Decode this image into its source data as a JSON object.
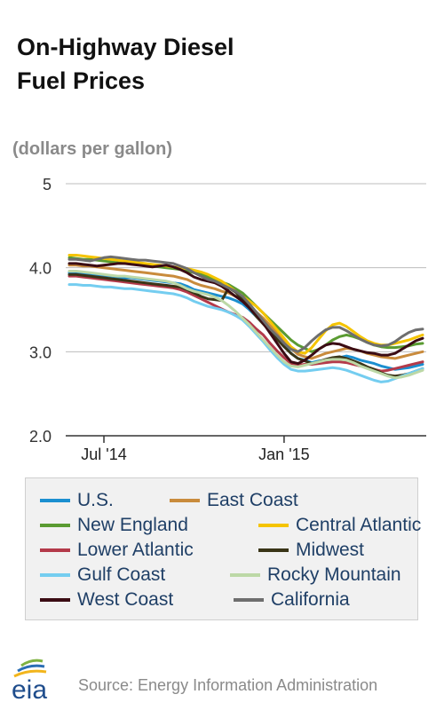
{
  "title_line1": "On-Highway Diesel",
  "title_line2": "Fuel Prices",
  "unit_label": "(dollars per gallon)",
  "logo_text": "eia",
  "source": "Source: Energy Information Administration",
  "chart_data": {
    "type": "line",
    "title": "On-Highway Diesel Fuel Prices",
    "ylabel": "(dollars per gallon)",
    "ylim": [
      2.0,
      5.0
    ],
    "y_ticks": [
      "2.0",
      "3.0",
      "4.0",
      "5"
    ],
    "y_tick_values": [
      2.0,
      3.0,
      4.0,
      5.0
    ],
    "x_ticks": [
      "Jul '14",
      "Jan '15"
    ],
    "x_tick_index": [
      5,
      31
    ],
    "grid": true,
    "legend_position": "bottom",
    "weeks": 52,
    "series": [
      {
        "name": "U.S.",
        "color": "#1b8fd0",
        "values": [
          3.94,
          3.94,
          3.93,
          3.92,
          3.91,
          3.91,
          3.9,
          3.89,
          3.88,
          3.88,
          3.87,
          3.86,
          3.85,
          3.84,
          3.83,
          3.82,
          3.81,
          3.78,
          3.74,
          3.72,
          3.7,
          3.68,
          3.66,
          3.64,
          3.61,
          3.57,
          3.5,
          3.42,
          3.36,
          3.26,
          3.17,
          3.08,
          2.98,
          2.92,
          2.9,
          2.87,
          2.89,
          2.9,
          2.92,
          2.93,
          2.95,
          2.93,
          2.9,
          2.88,
          2.86,
          2.83,
          2.81,
          2.79,
          2.8,
          2.81,
          2.83,
          2.85
        ]
      },
      {
        "name": "East Coast",
        "color": "#c98b3c",
        "values": [
          4.03,
          4.03,
          4.02,
          4.02,
          4.01,
          4.0,
          3.99,
          3.98,
          3.97,
          3.96,
          3.95,
          3.94,
          3.93,
          3.92,
          3.91,
          3.9,
          3.88,
          3.86,
          3.82,
          3.79,
          3.77,
          3.75,
          3.72,
          3.7,
          3.66,
          3.62,
          3.55,
          3.47,
          3.4,
          3.31,
          3.22,
          3.13,
          3.04,
          2.97,
          2.94,
          2.92,
          2.95,
          2.98,
          3.0,
          3.02,
          3.04,
          3.03,
          3.01,
          2.98,
          2.96,
          2.94,
          2.93,
          2.92,
          2.94,
          2.96,
          2.98,
          3.0
        ]
      },
      {
        "name": "New England",
        "color": "#5a9b32",
        "values": [
          4.12,
          4.11,
          4.1,
          4.1,
          4.09,
          4.08,
          4.07,
          4.06,
          4.05,
          4.05,
          4.04,
          4.03,
          4.02,
          4.01,
          4.0,
          3.99,
          3.98,
          3.96,
          3.94,
          3.92,
          3.89,
          3.86,
          3.83,
          3.8,
          3.75,
          3.7,
          3.62,
          3.54,
          3.46,
          3.38,
          3.3,
          3.22,
          3.14,
          3.08,
          3.04,
          3.0,
          3.03,
          3.08,
          3.14,
          3.18,
          3.2,
          3.18,
          3.15,
          3.11,
          3.08,
          3.06,
          3.05,
          3.05,
          3.06,
          3.07,
          3.09,
          3.1
        ]
      },
      {
        "name": "Central Atlantic",
        "color": "#f5c400",
        "values": [
          4.15,
          4.15,
          4.14,
          4.13,
          4.12,
          4.11,
          4.1,
          4.09,
          4.08,
          4.07,
          4.06,
          4.05,
          4.04,
          4.03,
          4.02,
          4.01,
          4.0,
          3.99,
          3.97,
          3.95,
          3.92,
          3.88,
          3.84,
          3.78,
          3.72,
          3.66,
          3.6,
          3.54,
          3.46,
          3.36,
          3.26,
          3.16,
          3.06,
          3.0,
          2.98,
          3.05,
          3.15,
          3.25,
          3.32,
          3.34,
          3.3,
          3.24,
          3.18,
          3.13,
          3.1,
          3.08,
          3.08,
          3.1,
          3.12,
          3.14,
          3.17,
          3.2
        ]
      },
      {
        "name": "Lower Atlantic",
        "color": "#b43a4a",
        "values": [
          3.9,
          3.9,
          3.89,
          3.88,
          3.87,
          3.86,
          3.85,
          3.84,
          3.83,
          3.82,
          3.81,
          3.8,
          3.79,
          3.78,
          3.77,
          3.76,
          3.74,
          3.71,
          3.67,
          3.63,
          3.59,
          3.55,
          3.51,
          3.47,
          3.44,
          3.41,
          3.35,
          3.27,
          3.2,
          3.1,
          3.01,
          2.93,
          2.86,
          2.84,
          2.85,
          2.85,
          2.86,
          2.87,
          2.88,
          2.88,
          2.87,
          2.85,
          2.83,
          2.81,
          2.79,
          2.77,
          2.78,
          2.8,
          2.82,
          2.84,
          2.86,
          2.88
        ]
      },
      {
        "name": "Midwest",
        "color": "#3a3517",
        "values": [
          3.92,
          3.92,
          3.91,
          3.9,
          3.89,
          3.88,
          3.87,
          3.86,
          3.85,
          3.84,
          3.83,
          3.82,
          3.81,
          3.8,
          3.79,
          3.78,
          3.77,
          3.74,
          3.7,
          3.66,
          3.63,
          3.62,
          3.61,
          3.76,
          3.71,
          3.62,
          3.52,
          3.42,
          3.33,
          3.24,
          3.15,
          3.06,
          2.98,
          2.92,
          2.89,
          2.86,
          2.88,
          2.91,
          2.93,
          2.94,
          2.92,
          2.89,
          2.86,
          2.82,
          2.79,
          2.75,
          2.72,
          2.71,
          2.72,
          2.74,
          2.77,
          2.8
        ]
      },
      {
        "name": "Gulf Coast",
        "color": "#74cdf0",
        "values": [
          3.8,
          3.8,
          3.79,
          3.79,
          3.78,
          3.77,
          3.77,
          3.76,
          3.75,
          3.75,
          3.74,
          3.73,
          3.72,
          3.71,
          3.7,
          3.69,
          3.67,
          3.64,
          3.6,
          3.57,
          3.54,
          3.52,
          3.5,
          3.47,
          3.43,
          3.38,
          3.3,
          3.21,
          3.12,
          3.02,
          2.93,
          2.85,
          2.79,
          2.77,
          2.77,
          2.78,
          2.79,
          2.8,
          2.81,
          2.8,
          2.78,
          2.75,
          2.72,
          2.69,
          2.66,
          2.64,
          2.65,
          2.68,
          2.71,
          2.74,
          2.77,
          2.8
        ]
      },
      {
        "name": "Rocky Mountain",
        "color": "#bcd8a6",
        "values": [
          3.96,
          3.96,
          3.95,
          3.94,
          3.93,
          3.92,
          3.91,
          3.9,
          3.9,
          3.89,
          3.88,
          3.87,
          3.86,
          3.85,
          3.84,
          3.82,
          3.79,
          3.75,
          3.72,
          3.7,
          3.68,
          3.65,
          3.61,
          3.55,
          3.48,
          3.4,
          3.32,
          3.23,
          3.14,
          3.05,
          2.96,
          2.88,
          2.83,
          2.82,
          2.84,
          2.86,
          2.88,
          2.9,
          2.91,
          2.91,
          2.9,
          2.87,
          2.83,
          2.8,
          2.77,
          2.74,
          2.71,
          2.69,
          2.7,
          2.72,
          2.75,
          2.78
        ]
      },
      {
        "name": "West Coast",
        "color": "#3b0c14",
        "values": [
          4.05,
          4.05,
          4.04,
          4.03,
          4.02,
          4.03,
          4.04,
          4.05,
          4.05,
          4.04,
          4.03,
          4.02,
          4.01,
          4.02,
          4.03,
          4.01,
          3.98,
          3.94,
          3.89,
          3.86,
          3.84,
          3.82,
          3.78,
          3.72,
          3.66,
          3.6,
          3.52,
          3.44,
          3.34,
          3.22,
          3.1,
          2.98,
          2.88,
          2.86,
          2.9,
          2.96,
          3.03,
          3.08,
          3.1,
          3.09,
          3.06,
          3.03,
          3.01,
          2.99,
          2.98,
          2.96,
          2.96,
          2.98,
          3.03,
          3.08,
          3.13,
          3.16
        ]
      },
      {
        "name": "California",
        "color": "#6e6e6e",
        "values": [
          4.1,
          4.1,
          4.09,
          4.08,
          4.1,
          4.12,
          4.13,
          4.12,
          4.11,
          4.1,
          4.09,
          4.09,
          4.08,
          4.07,
          4.06,
          4.05,
          4.02,
          3.99,
          3.94,
          3.9,
          3.86,
          3.84,
          3.8,
          3.76,
          3.72,
          3.66,
          3.57,
          3.47,
          3.37,
          3.27,
          3.19,
          3.1,
          3.03,
          3.0,
          3.05,
          3.13,
          3.2,
          3.26,
          3.29,
          3.29,
          3.25,
          3.2,
          3.15,
          3.11,
          3.08,
          3.07,
          3.08,
          3.12,
          3.18,
          3.23,
          3.26,
          3.27
        ]
      }
    ]
  }
}
